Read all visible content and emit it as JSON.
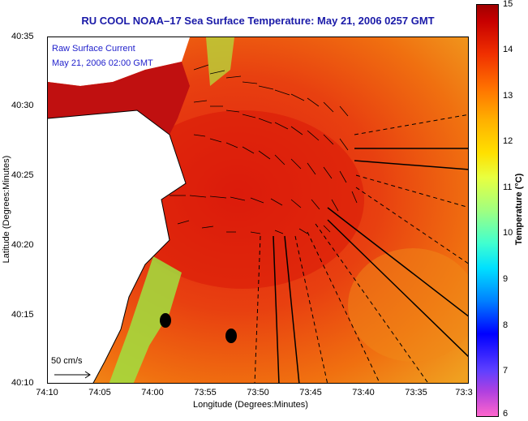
{
  "title": "RU COOL  NOAA–17  Sea Surface Temperature:  May 21, 2006 0257 GMT",
  "overlay": {
    "line1": "Raw Surface Current",
    "line2": "May 21, 2006 02:00 GMT",
    "scale_label": "50 cm/s"
  },
  "axes": {
    "xlabel": "Longitude (Degrees:Minutes)",
    "ylabel": "Latitude (Degrees:Minutes)",
    "xticks": [
      "74:10",
      "74:05",
      "74:00",
      "73:55",
      "73:50",
      "73:45",
      "73:40",
      "73:35",
      "73:3"
    ],
    "yticks": [
      "40:35",
      "40:30",
      "40:25",
      "40:20",
      "40:15",
      "40:10"
    ]
  },
  "colorbar": {
    "label": "Temperature (°C)",
    "ticks": [
      "15",
      "14",
      "13",
      "12",
      "11",
      "10",
      "9",
      "8",
      "7",
      "6"
    ]
  },
  "colors": {
    "title": "#1a1aa8",
    "land": "#ffffff",
    "warm_water": "#d82010",
    "coastal_water": "#90e060"
  }
}
